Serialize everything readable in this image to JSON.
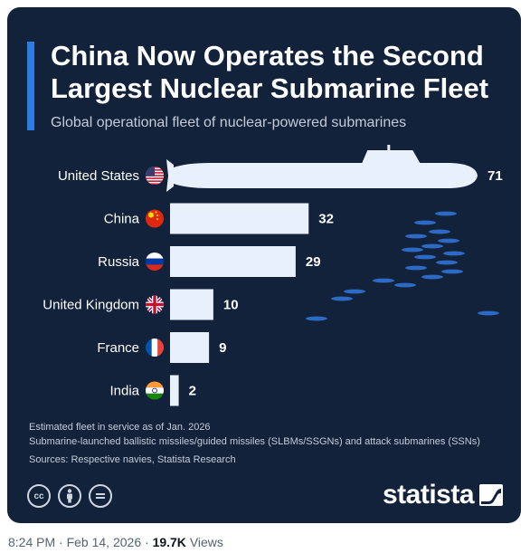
{
  "header": {
    "title": "China Now Operates the Second Largest Nuclear Submarine Fleet",
    "subtitle": "Global operational fleet of nuclear-powered submarines"
  },
  "chart_data": {
    "type": "bar",
    "orientation": "horizontal",
    "categories": [
      "United States",
      "China",
      "Russia",
      "United Kingdom",
      "France",
      "India"
    ],
    "values": [
      71,
      32,
      29,
      10,
      9,
      2
    ],
    "flags": [
      "us-flag-icon",
      "china-flag-icon",
      "russia-flag-icon",
      "uk-flag-icon",
      "france-flag-icon",
      "india-flag-icon"
    ],
    "xlim": [
      0,
      71
    ],
    "grid": false,
    "bar_color": "#e8f0fc",
    "label_color": "#ffffff"
  },
  "notes": {
    "line1": "Estimated fleet in service as of Jan. 2026",
    "line2": "Submarine-launched ballistic missiles/guided missiles (SLBMs/SSGNs) and attack submarines (SSNs)",
    "sources": "Sources: Respective navies, Statista Research"
  },
  "brand": {
    "name": "statista"
  },
  "license_icons": [
    "cc-icon",
    "by-icon",
    "nd-icon"
  ],
  "tweet_meta": {
    "time": "8:24 PM",
    "separator": " · ",
    "date": "Feb 14, 2026",
    "views_count": "19.7K",
    "views_label": "Views"
  },
  "colors": {
    "background": "#13223b",
    "accent": "#2a7de1",
    "bar": "#e8f0fc",
    "fish": "#2c6ac4"
  }
}
